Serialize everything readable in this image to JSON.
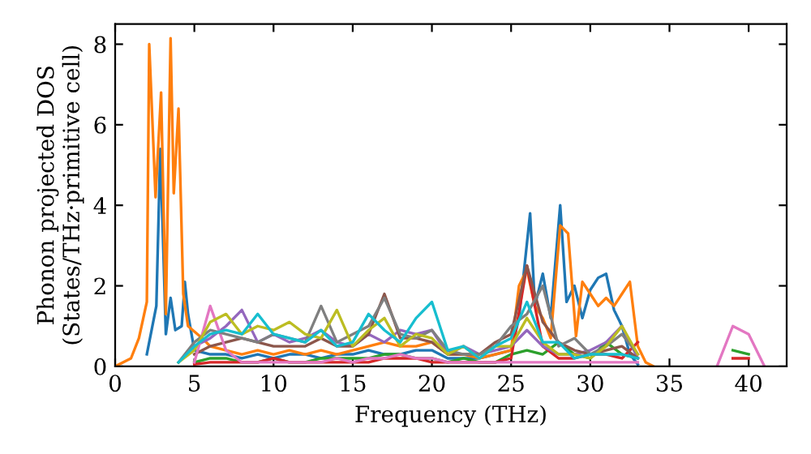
{
  "chart_data": {
    "type": "line",
    "xlabel": "Frequency (THz)",
    "ylabel": "Phonon projected DOS\n(States/THz·primitive cell)",
    "xlim": [
      0,
      42.4
    ],
    "ylim": [
      0,
      8.5
    ],
    "xticks": [
      0,
      5,
      10,
      15,
      20,
      25,
      30,
      35,
      40
    ],
    "yticks": [
      0,
      2,
      4,
      6,
      8
    ],
    "line_style": "solid",
    "x": [
      4,
      5,
      6,
      7,
      8,
      9,
      10,
      11,
      12,
      13,
      14,
      15,
      16,
      17,
      18,
      19,
      20,
      21,
      22,
      23,
      24,
      25,
      26,
      27,
      28,
      29,
      30,
      31,
      32,
      33,
      34,
      35,
      36,
      37,
      38,
      39,
      40,
      41
    ],
    "series": [
      {
        "color": "#1f77b4",
        "x": [
          2,
          2.6,
          2.85,
          3.2,
          3.5,
          3.8,
          4.2,
          4.4,
          4.6,
          5,
          6,
          7,
          8,
          9,
          10,
          11,
          12,
          13,
          14,
          15,
          16,
          17,
          18,
          19,
          20,
          21,
          22,
          23,
          24,
          25,
          25.5,
          26.2,
          26.5,
          27,
          27.5,
          28.1,
          28.5,
          29,
          29.5,
          30,
          30.5,
          31,
          31.5,
          32,
          32.5,
          33
        ],
        "values": [
          0.3,
          1.5,
          5.4,
          0.8,
          1.7,
          0.9,
          1.0,
          2.1,
          1.3,
          0.4,
          0.3,
          0.3,
          0.2,
          0.3,
          0.2,
          0.3,
          0.3,
          0.2,
          0.3,
          0.3,
          0.4,
          0.3,
          0.3,
          0.4,
          0.4,
          0.2,
          0.2,
          0.2,
          0.3,
          0.4,
          1.2,
          3.8,
          1.5,
          2.3,
          1.2,
          4.0,
          1.6,
          2.0,
          1.2,
          1.9,
          2.2,
          2.3,
          1.4,
          1.0,
          0.3,
          0.05
        ]
      },
      {
        "color": "#ff7f0e",
        "x": [
          0,
          1,
          1.5,
          2,
          2.15,
          2.55,
          2.9,
          3.2,
          3.5,
          3.7,
          4.0,
          4.3,
          4.6,
          5.5,
          6,
          7,
          8,
          9,
          10,
          11,
          12,
          13,
          14,
          15,
          16,
          17,
          18,
          19,
          20,
          21,
          22,
          23,
          24,
          25,
          25.5,
          26,
          26.5,
          27,
          27.5,
          28.1,
          28.6,
          29.1,
          29.5,
          30,
          30.5,
          31,
          31.5,
          32,
          32.5,
          33,
          33.5,
          34
        ],
        "values": [
          0,
          0.2,
          0.7,
          1.6,
          8.0,
          4.2,
          6.8,
          1.3,
          8.15,
          4.3,
          6.4,
          1.8,
          1.0,
          0.7,
          0.5,
          0.4,
          0.3,
          0.4,
          0.3,
          0.4,
          0.3,
          0.4,
          0.3,
          0.4,
          0.5,
          0.6,
          0.5,
          0.5,
          0.6,
          0.3,
          0.3,
          0.2,
          0.3,
          0.4,
          2.0,
          2.4,
          1.5,
          1.2,
          0.7,
          3.5,
          3.3,
          0.75,
          2.1,
          1.8,
          1.5,
          1.7,
          1.5,
          1.8,
          2.1,
          0.5,
          0.1,
          0
        ]
      },
      {
        "color": "#2ca02c",
        "values": [
          null,
          0.1,
          0.2,
          0.2,
          0.1,
          0.1,
          0.2,
          0.1,
          0.1,
          0.2,
          0.2,
          0.2,
          0.2,
          0.3,
          0.3,
          0.2,
          0.2,
          0.1,
          0.2,
          0.1,
          0.1,
          0.3,
          0.4,
          0.3,
          0.6,
          0.3,
          0.2,
          0.6,
          0.3,
          0.2,
          null,
          null,
          null,
          null,
          null,
          0.4,
          0.3,
          null
        ]
      },
      {
        "color": "#d62728",
        "values": [
          null,
          0.05,
          0.1,
          0.1,
          0.1,
          0.1,
          0.2,
          0.1,
          0.1,
          0.1,
          0.1,
          0.1,
          0.1,
          0.2,
          0.2,
          0.2,
          0.1,
          0.1,
          0.1,
          0.1,
          0.1,
          0.2,
          2.5,
          0.5,
          0.2,
          0.2,
          0.3,
          0.3,
          0.2,
          0.6,
          null,
          null,
          null,
          null,
          null,
          0.2,
          0.2,
          null
        ]
      },
      {
        "color": "#9467bd",
        "values": [
          0.1,
          0.5,
          0.7,
          1.0,
          1.4,
          0.6,
          0.8,
          0.6,
          0.7,
          0.9,
          0.6,
          0.5,
          0.8,
          0.6,
          0.9,
          0.8,
          0.9,
          0.3,
          0.5,
          0.3,
          0.4,
          0.5,
          0.9,
          0.5,
          0.3,
          0.3,
          0.4,
          0.6,
          1.0,
          0.2,
          null,
          null,
          null,
          null,
          null,
          null,
          null,
          null
        ]
      },
      {
        "color": "#8c564b",
        "values": [
          null,
          0.3,
          0.5,
          0.6,
          0.7,
          0.6,
          0.5,
          0.5,
          0.5,
          0.7,
          0.5,
          0.5,
          0.8,
          1.8,
          0.7,
          0.7,
          0.6,
          0.3,
          0.3,
          0.3,
          0.6,
          0.8,
          2.5,
          1.1,
          0.6,
          0.4,
          0.3,
          0.4,
          0.5,
          0.2,
          null,
          null,
          null,
          null,
          null,
          null,
          null,
          null
        ]
      },
      {
        "color": "#e377c2",
        "values": [
          null,
          0.1,
          1.5,
          0.4,
          0.1,
          0.1,
          0.1,
          0.1,
          0.1,
          0.1,
          0.2,
          0.1,
          0.2,
          0.2,
          0.3,
          0.2,
          0.2,
          0.1,
          0.1,
          0.1,
          0.1,
          0.1,
          0.1,
          0.1,
          0.1,
          0.1,
          0.1,
          0.1,
          0.1,
          0.1,
          null,
          null,
          null,
          null,
          0,
          1.0,
          0.8,
          0
        ]
      },
      {
        "color": "#7f7f7f",
        "values": [
          0.1,
          0.6,
          0.9,
          0.8,
          0.7,
          0.6,
          0.8,
          0.7,
          0.6,
          1.5,
          0.6,
          0.8,
          1.0,
          1.7,
          0.8,
          0.7,
          0.9,
          0.4,
          0.3,
          0.3,
          0.5,
          1.0,
          1.3,
          2.0,
          0.5,
          0.7,
          0.3,
          0.5,
          0.8,
          0.3,
          null,
          null,
          null,
          null,
          null,
          null,
          null,
          null
        ]
      },
      {
        "color": "#bcbd22",
        "values": [
          0.1,
          0.4,
          1.1,
          1.3,
          0.8,
          1.0,
          0.9,
          1.1,
          0.8,
          0.7,
          1.4,
          0.5,
          0.9,
          1.2,
          0.5,
          0.8,
          0.7,
          0.3,
          0.5,
          0.2,
          0.5,
          0.5,
          1.2,
          0.6,
          0.3,
          0.3,
          0.2,
          0.5,
          1.0,
          0.3,
          null,
          null,
          null,
          null,
          null,
          null,
          null,
          null
        ]
      },
      {
        "color": "#17becf",
        "values": [
          0.1,
          0.5,
          0.8,
          0.9,
          0.8,
          1.3,
          0.8,
          0.7,
          0.6,
          0.9,
          0.5,
          0.6,
          1.3,
          0.9,
          0.6,
          1.2,
          1.6,
          0.4,
          0.5,
          0.2,
          0.5,
          0.7,
          1.6,
          0.6,
          0.6,
          0.2,
          0.3,
          0.3,
          0.3,
          0.2,
          null,
          null,
          null,
          null,
          null,
          null,
          null,
          null
        ]
      }
    ]
  }
}
